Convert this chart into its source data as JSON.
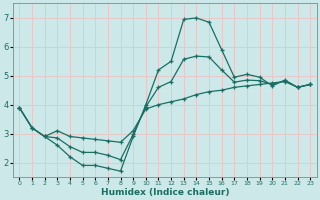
{
  "xlabel": "Humidex (Indice chaleur)",
  "bg_color": "#cce8e8",
  "grid_color": "#e8c8c8",
  "line_color": "#1a6e64",
  "xlim": [
    -0.5,
    23.5
  ],
  "ylim": [
    1.5,
    7.5
  ],
  "xticks": [
    0,
    1,
    2,
    3,
    4,
    5,
    6,
    7,
    8,
    9,
    10,
    11,
    12,
    13,
    14,
    15,
    16,
    17,
    18,
    19,
    20,
    21,
    22,
    23
  ],
  "yticks": [
    2,
    3,
    4,
    5,
    6,
    7
  ],
  "line1_x": [
    0,
    1,
    2,
    3,
    4,
    5,
    6,
    7,
    8,
    9,
    10,
    11,
    12,
    13,
    14,
    15,
    16,
    17,
    18,
    19,
    20,
    21,
    22,
    23
  ],
  "line1_y": [
    3.9,
    3.2,
    2.9,
    2.6,
    2.2,
    1.9,
    1.9,
    1.8,
    1.7,
    2.9,
    4.0,
    5.2,
    5.5,
    6.95,
    7.0,
    6.85,
    5.9,
    4.95,
    5.05,
    4.95,
    4.65,
    4.85,
    4.6,
    4.7
  ],
  "line2_x": [
    0,
    1,
    2,
    3,
    4,
    5,
    6,
    7,
    8,
    9,
    10,
    11,
    12,
    13,
    14,
    15,
    16,
    17,
    18,
    19,
    20,
    21,
    22,
    23
  ],
  "line2_y": [
    3.9,
    3.2,
    2.9,
    3.1,
    2.9,
    2.85,
    2.8,
    2.75,
    2.7,
    3.1,
    3.85,
    4.0,
    4.1,
    4.2,
    4.35,
    4.45,
    4.5,
    4.6,
    4.65,
    4.7,
    4.75,
    4.8,
    4.6,
    4.7
  ],
  "line3_x": [
    0,
    1,
    2,
    3,
    4,
    5,
    6,
    7,
    8,
    9,
    10,
    11,
    12,
    13,
    14,
    15,
    16,
    17,
    18,
    19,
    20,
    21,
    22,
    23
  ],
  "line3_y": [
    3.9,
    3.2,
    2.9,
    2.85,
    2.55,
    2.35,
    2.35,
    2.25,
    2.1,
    2.97,
    3.93,
    4.6,
    4.8,
    5.57,
    5.68,
    5.65,
    5.2,
    4.78,
    4.85,
    4.83,
    4.7,
    4.83,
    4.6,
    4.7
  ]
}
